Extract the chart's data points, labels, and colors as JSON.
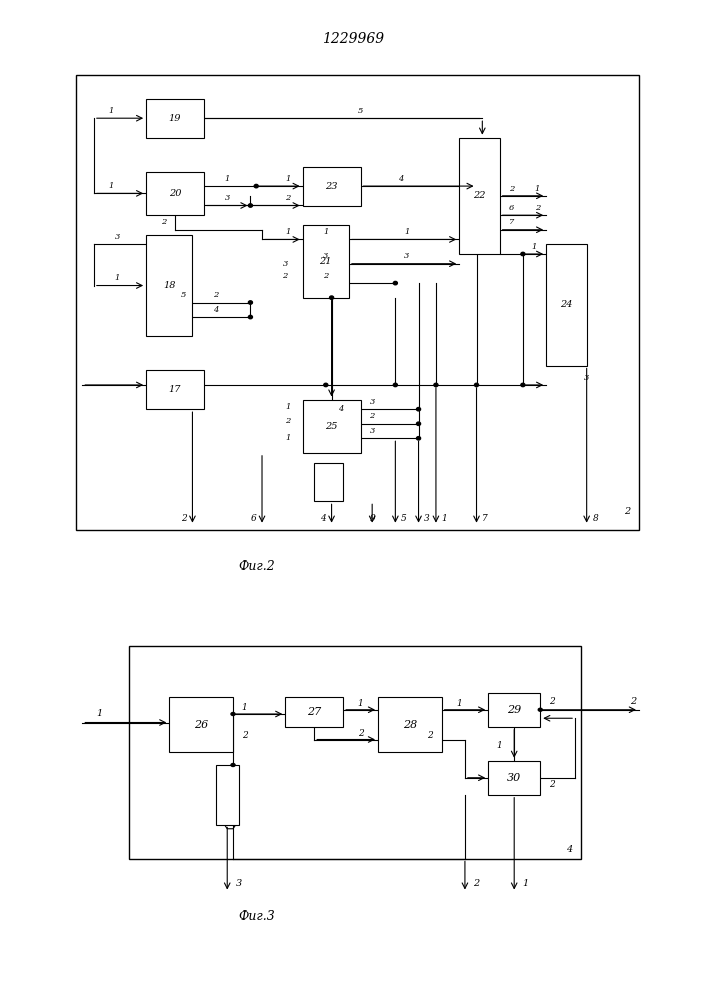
{
  "title": "1229969",
  "title_fontsize": 10,
  "fig1_caption": "Фиг.2",
  "fig2_caption": "Фиг.3",
  "bg_color": "#ffffff"
}
